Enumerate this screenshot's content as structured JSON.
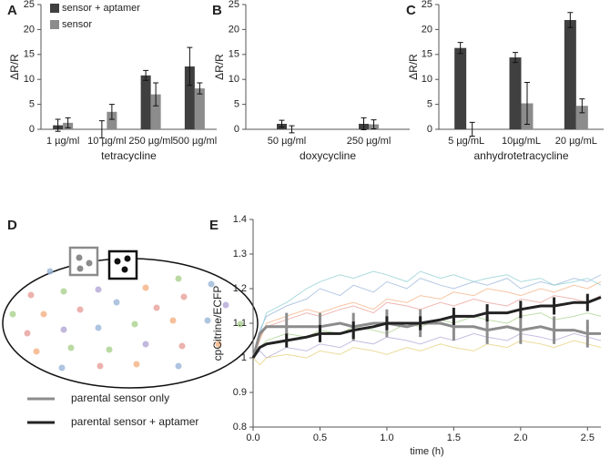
{
  "chart_data": [
    {
      "type": "bar",
      "label": "A",
      "ylabel": "ΔR/R",
      "xlabel": "tetracycline",
      "categories": [
        "1 µg/ml",
        "10 µg/ml",
        "250 µg/ml",
        "500 µg/ml"
      ],
      "series": [
        {
          "name": "sensor + aptamer",
          "color": "#404040",
          "values": [
            0.8,
            0,
            10.8,
            12.6
          ],
          "errors": [
            1.2,
            1.7,
            1,
            3.8
          ]
        },
        {
          "name": "sensor",
          "color": "#8c8c8c",
          "values": [
            1.3,
            3.5,
            7,
            8.2
          ],
          "errors": [
            1,
            1.5,
            2.3,
            1.1
          ]
        }
      ],
      "ylim": [
        0,
        25
      ],
      "yticks": [
        0,
        5,
        10,
        15,
        20,
        25
      ],
      "legend": "upper left"
    },
    {
      "type": "bar",
      "label": "B",
      "ylabel": "ΔR/R",
      "xlabel": "doxycycline",
      "categories": [
        "50 µg/ml",
        "250 µg/ml"
      ],
      "series": [
        {
          "color": "#404040",
          "values": [
            1.1,
            1.1
          ],
          "errors": [
            0.7,
            1.2
          ]
        },
        {
          "color": "#8c8c8c",
          "values": [
            0,
            1
          ],
          "errors": [
            0.7,
            0.9
          ]
        }
      ],
      "ylim": [
        0,
        25
      ],
      "yticks": [
        0,
        5,
        10,
        15,
        20,
        25
      ]
    },
    {
      "type": "bar",
      "label": "C",
      "ylabel": "ΔR/R",
      "xlabel": "anhydrotetracycline",
      "categories": [
        "5 µg/mL",
        "10µg/mL",
        "20 µg/mL"
      ],
      "series": [
        {
          "color": "#404040",
          "values": [
            16.3,
            14.4,
            21.9
          ],
          "errors": [
            1.1,
            1,
            1.5
          ]
        },
        {
          "color": "#8c8c8c",
          "values": [
            0,
            5.2,
            4.7
          ],
          "errors": [
            1.4,
            4.2,
            1.4
          ]
        }
      ],
      "ylim": [
        0,
        25
      ],
      "yticks": [
        0,
        5,
        10,
        15,
        20,
        25
      ]
    },
    {
      "type": "line",
      "label": "E",
      "ylabel": "cpCitrine/ECFP",
      "xlabel": "time (h)",
      "x": [
        0,
        0.05,
        0.1,
        0.25,
        0.4,
        0.5,
        0.65,
        0.75,
        0.9,
        1.0,
        1.15,
        1.25,
        1.4,
        1.5,
        1.65,
        1.75,
        1.9,
        2.0,
        2.15,
        2.25,
        2.4,
        2.5,
        2.6
      ],
      "series": [
        {
          "color": "#9bb7d9",
          "values": [
            1.0,
            1.08,
            1.12,
            1.15,
            1.17,
            1.2,
            1.18,
            1.21,
            1.19,
            1.22,
            1.2,
            1.23,
            1.21,
            1.2,
            1.22,
            1.21,
            1.23,
            1.2,
            1.22,
            1.21,
            1.23,
            1.22,
            1.24
          ]
        },
        {
          "color": "#f4b183",
          "values": [
            1.0,
            1.05,
            1.1,
            1.12,
            1.14,
            1.13,
            1.15,
            1.16,
            1.14,
            1.17,
            1.16,
            1.18,
            1.17,
            1.19,
            1.18,
            1.2,
            1.19,
            1.18,
            1.2,
            1.19,
            1.21,
            1.2,
            1.22
          ]
        },
        {
          "color": "#a9d18e",
          "values": [
            1.0,
            1.03,
            1.05,
            1.07,
            1.06,
            1.08,
            1.07,
            1.09,
            1.08,
            1.07,
            1.1,
            1.09,
            1.11,
            1.1,
            1.12,
            1.11,
            1.1,
            1.12,
            1.13,
            1.11,
            1.12,
            1.13,
            1.12
          ]
        },
        {
          "color": "#e8a09a",
          "values": [
            1.0,
            1.06,
            1.09,
            1.11,
            1.13,
            1.12,
            1.14,
            1.15,
            1.13,
            1.16,
            1.15,
            1.14,
            1.16,
            1.15,
            1.17,
            1.16,
            1.15,
            1.17,
            1.16,
            1.18,
            1.17,
            1.16,
            1.18
          ]
        },
        {
          "color": "#b4a7d6",
          "values": [
            1.0,
            1.02,
            1.0,
            1.03,
            1.02,
            1.04,
            1.03,
            1.05,
            1.04,
            1.06,
            1.05,
            1.04,
            1.06,
            1.05,
            1.07,
            1.06,
            1.05,
            1.07,
            1.06,
            1.05,
            1.07,
            1.06,
            1.05
          ]
        },
        {
          "color": "#8fcfd1",
          "values": [
            1.0,
            1.07,
            1.13,
            1.16,
            1.2,
            1.22,
            1.24,
            1.23,
            1.25,
            1.24,
            1.22,
            1.25,
            1.23,
            1.24,
            1.22,
            1.23,
            1.24,
            1.22,
            1.23,
            1.21,
            1.22,
            1.23,
            1.21
          ]
        },
        {
          "color": "#e6cf7a",
          "values": [
            1.0,
            0.98,
            1.0,
            1.01,
            1.0,
            1.02,
            1.01,
            1.03,
            1.02,
            1.01,
            1.03,
            1.02,
            1.04,
            1.03,
            1.02,
            1.04,
            1.03,
            1.05,
            1.04,
            1.03,
            1.05,
            1.04,
            1.03
          ]
        },
        {
          "name": "parental sensor only",
          "color": "#8c8c8c",
          "width": 3,
          "values": [
            1.0,
            1.07,
            1.09,
            1.09,
            1.09,
            1.09,
            1.1,
            1.09,
            1.1,
            1.1,
            1.09,
            1.1,
            1.1,
            1.09,
            1.09,
            1.08,
            1.09,
            1.08,
            1.09,
            1.08,
            1.08,
            1.07,
            1.07
          ],
          "errors": [
            null,
            null,
            null,
            0.04,
            null,
            0.04,
            null,
            0.04,
            null,
            0.04,
            null,
            0.04,
            null,
            0.04,
            null,
            0.04,
            null,
            0.04,
            null,
            0.04,
            null,
            0.04,
            null
          ]
        },
        {
          "name": "parental sensor + aptamer",
          "color": "#222222",
          "width": 3,
          "values": [
            1.0,
            1.03,
            1.04,
            1.05,
            1.06,
            1.07,
            1.07,
            1.08,
            1.09,
            1.1,
            1.1,
            1.1,
            1.11,
            1.12,
            1.12,
            1.13,
            1.13,
            1.14,
            1.15,
            1.15,
            1.16,
            1.16,
            1.175
          ],
          "errors": [
            null,
            null,
            null,
            0.02,
            null,
            0.025,
            null,
            0.025,
            null,
            0.02,
            null,
            0.02,
            null,
            0.025,
            null,
            0.025,
            null,
            0.025,
            null,
            0.025,
            null,
            0.025,
            null
          ]
        }
      ],
      "xlim": [
        0,
        2.6
      ],
      "xticks": [
        {
          "value": 0,
          "label": "0.0"
        },
        0.5,
        {
          "value": 1,
          "label": "1.0"
        },
        1.5,
        {
          "value": 2,
          "label": "2.0"
        },
        2.5
      ],
      "ylim": [
        0.8,
        1.4
      ],
      "yticks": [
        0.8,
        0.9,
        1,
        1.1,
        1.2,
        1.3,
        1.4
      ]
    }
  ],
  "diagram": {
    "label": "D"
  }
}
